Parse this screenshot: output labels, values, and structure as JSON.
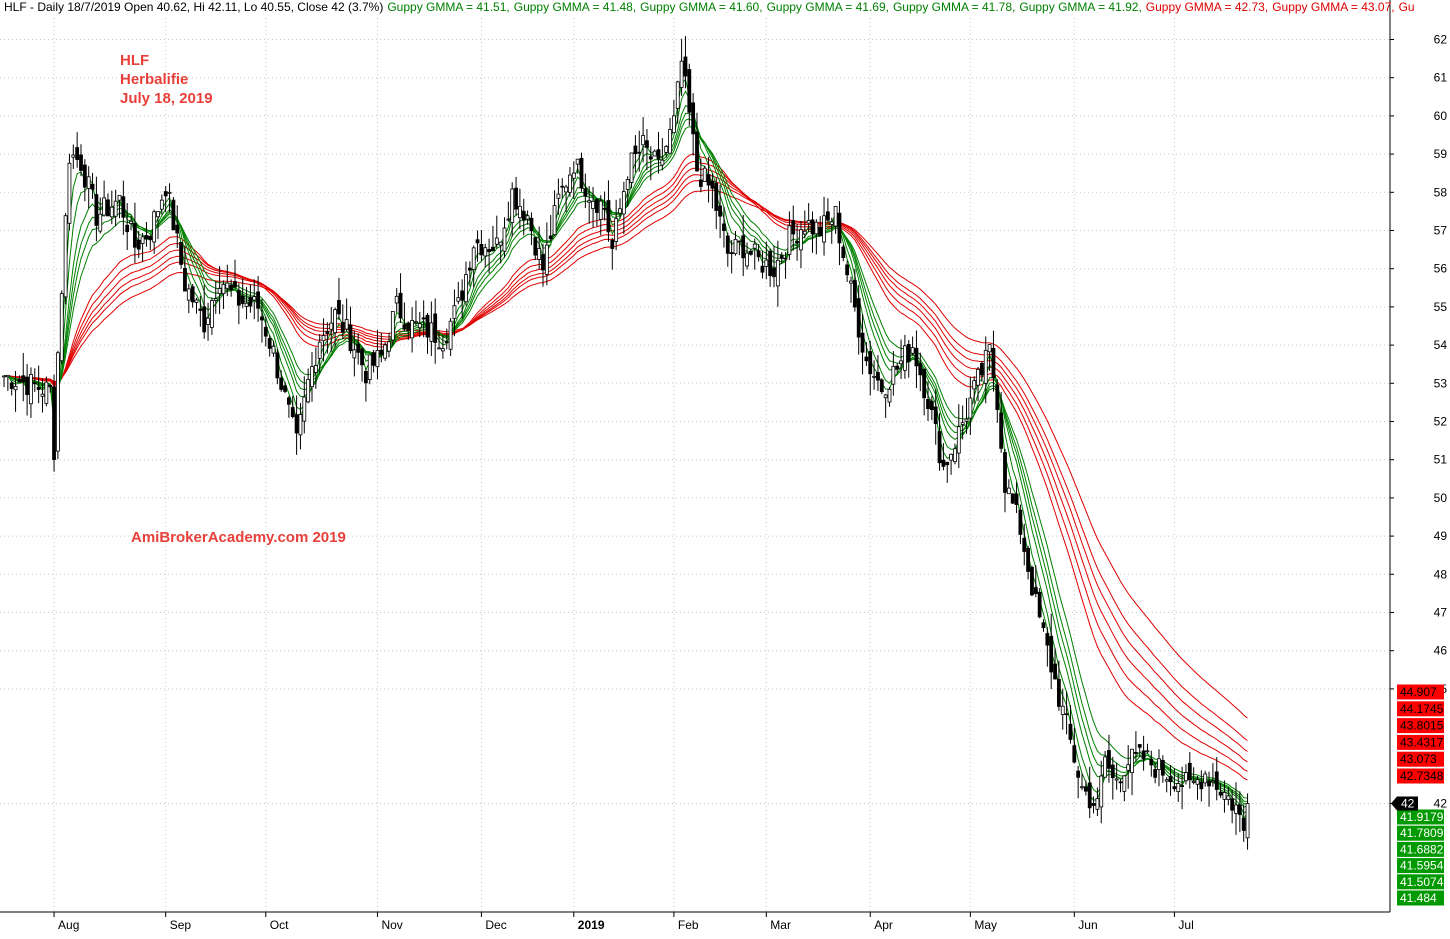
{
  "header": {
    "title": "HLF - Daily 18/7/2019 Open 40.62, Hi 42.11, Lo 40.55, Close 42 (3.7%)",
    "indicators": [
      {
        "text": "Guppy GMMA = 41.51,",
        "color": "#008000"
      },
      {
        "text": "Guppy GMMA = 41.48,",
        "color": "#008000"
      },
      {
        "text": "Guppy GMMA = 41.60,",
        "color": "#008000"
      },
      {
        "text": "Guppy GMMA = 41.69,",
        "color": "#008000"
      },
      {
        "text": "Guppy GMMA = 41.78,",
        "color": "#008000"
      },
      {
        "text": "Guppy GMMA = 41.92,",
        "color": "#008000"
      },
      {
        "text": "Guppy GMMA = 42.73,",
        "color": "#e00000"
      },
      {
        "text": "Guppy GMMA = 43.07,",
        "color": "#e00000"
      },
      {
        "text": "Gu",
        "color": "#e00000"
      }
    ]
  },
  "annotations": {
    "ticker": "HLF",
    "company": "Herbalifie",
    "date": "July 18, 2019",
    "watermark": "AmiBrokerAcademy.com  2019"
  },
  "colors": {
    "short_term": "#008000",
    "long_term": "#e00000",
    "candle": "#000000",
    "grid": "#c8c8c8",
    "annotation": "#e8413b",
    "label_red": "#ff0000",
    "label_green": "#009900"
  },
  "chart_data": {
    "type": "candlestick",
    "ylim": [
      40,
      62.5
    ],
    "y_ticks": [
      42,
      45,
      46,
      47,
      48,
      49,
      50,
      51,
      52,
      53,
      54,
      55,
      56,
      57,
      58,
      59,
      60,
      61,
      62
    ],
    "x_months": [
      {
        "label": "Aug",
        "bold": false
      },
      {
        "label": "Sep",
        "bold": false
      },
      {
        "label": "Oct",
        "bold": false
      },
      {
        "label": "Nov",
        "bold": false
      },
      {
        "label": "Dec",
        "bold": false
      },
      {
        "label": "2019",
        "bold": true
      },
      {
        "label": "Feb",
        "bold": false
      },
      {
        "label": "Mar",
        "bold": false
      },
      {
        "label": "Apr",
        "bold": false
      },
      {
        "label": "May",
        "bold": false
      },
      {
        "label": "Jun",
        "bold": false
      },
      {
        "label": "Jul",
        "bold": false
      }
    ],
    "close_path": [
      [
        0,
        53.2
      ],
      [
        12,
        52.8
      ],
      [
        13,
        51.3
      ],
      [
        14,
        53.8
      ],
      [
        17,
        59.0
      ],
      [
        20,
        58.8
      ],
      [
        24,
        57.4
      ],
      [
        30,
        57.8
      ],
      [
        34,
        56.6
      ],
      [
        38,
        57.0
      ],
      [
        42,
        58.2
      ],
      [
        44,
        57.2
      ],
      [
        47,
        55.6
      ],
      [
        52,
        54.6
      ],
      [
        56,
        55.8
      ],
      [
        60,
        55.2
      ],
      [
        66,
        55.0
      ],
      [
        70,
        53.8
      ],
      [
        74,
        52.2
      ],
      [
        76,
        51.4
      ],
      [
        79,
        53.0
      ],
      [
        82,
        54.2
      ],
      [
        86,
        54.8
      ],
      [
        90,
        54.2
      ],
      [
        94,
        53.3
      ],
      [
        98,
        53.7
      ],
      [
        102,
        55.0
      ],
      [
        106,
        54.5
      ],
      [
        110,
        54.4
      ],
      [
        114,
        54.2
      ],
      [
        118,
        55.0
      ],
      [
        122,
        56.7
      ],
      [
        128,
        56.6
      ],
      [
        132,
        58.0
      ],
      [
        136,
        57.4
      ],
      [
        140,
        56.0
      ],
      [
        144,
        57.8
      ],
      [
        148,
        58.8
      ],
      [
        152,
        58.0
      ],
      [
        156,
        57.6
      ],
      [
        158,
        56.5
      ],
      [
        162,
        58.6
      ],
      [
        166,
        59.2
      ],
      [
        170,
        58.6
      ],
      [
        174,
        59.8
      ],
      [
        176,
        61.4
      ],
      [
        178,
        60.0
      ],
      [
        180,
        58.6
      ],
      [
        184,
        58.0
      ],
      [
        188,
        56.4
      ],
      [
        192,
        56.6
      ],
      [
        196,
        56.2
      ],
      [
        200,
        56.0
      ],
      [
        204,
        56.8
      ],
      [
        208,
        57.2
      ],
      [
        212,
        57.0
      ],
      [
        216,
        57.4
      ],
      [
        220,
        55.4
      ],
      [
        224,
        53.6
      ],
      [
        228,
        52.9
      ],
      [
        232,
        53.4
      ],
      [
        236,
        54.0
      ],
      [
        240,
        52.6
      ],
      [
        244,
        50.8
      ],
      [
        248,
        51.7
      ],
      [
        252,
        52.8
      ],
      [
        256,
        53.8
      ],
      [
        258,
        52.6
      ],
      [
        260,
        50.4
      ],
      [
        264,
        49.2
      ],
      [
        268,
        47.2
      ],
      [
        272,
        45.6
      ],
      [
        276,
        44.0
      ],
      [
        280,
        42.4
      ],
      [
        284,
        41.9
      ],
      [
        286,
        43.2
      ],
      [
        288,
        42.6
      ],
      [
        292,
        43.1
      ],
      [
        296,
        43.2
      ],
      [
        300,
        42.9
      ],
      [
        304,
        42.7
      ],
      [
        308,
        42.4
      ],
      [
        312,
        42.8
      ],
      [
        316,
        42.4
      ],
      [
        320,
        41.9
      ],
      [
        322,
        41.3
      ],
      [
        323,
        42.0
      ]
    ],
    "ma_periods": [
      3,
      5,
      8,
      10,
      12,
      15,
      30,
      35,
      40,
      45,
      50,
      60
    ],
    "price_labels_red": [
      44.907,
      44.1745,
      43.8015,
      43.4317,
      43.073,
      42.7348
    ],
    "price_labels_green": [
      41.9179,
      41.7809,
      41.6882,
      41.5954,
      41.5074,
      41.484
    ],
    "price_labels_red_text": [
      "44.907",
      "44.1745",
      "43.8015",
      "43.4317",
      "43.073",
      "42.7348"
    ],
    "price_labels_green_text": [
      "41.9179",
      "41.7809",
      "41.6882",
      "41.5954",
      "41.5074",
      "41.484"
    ],
    "last_close_label": "42",
    "last_close": 42
  }
}
